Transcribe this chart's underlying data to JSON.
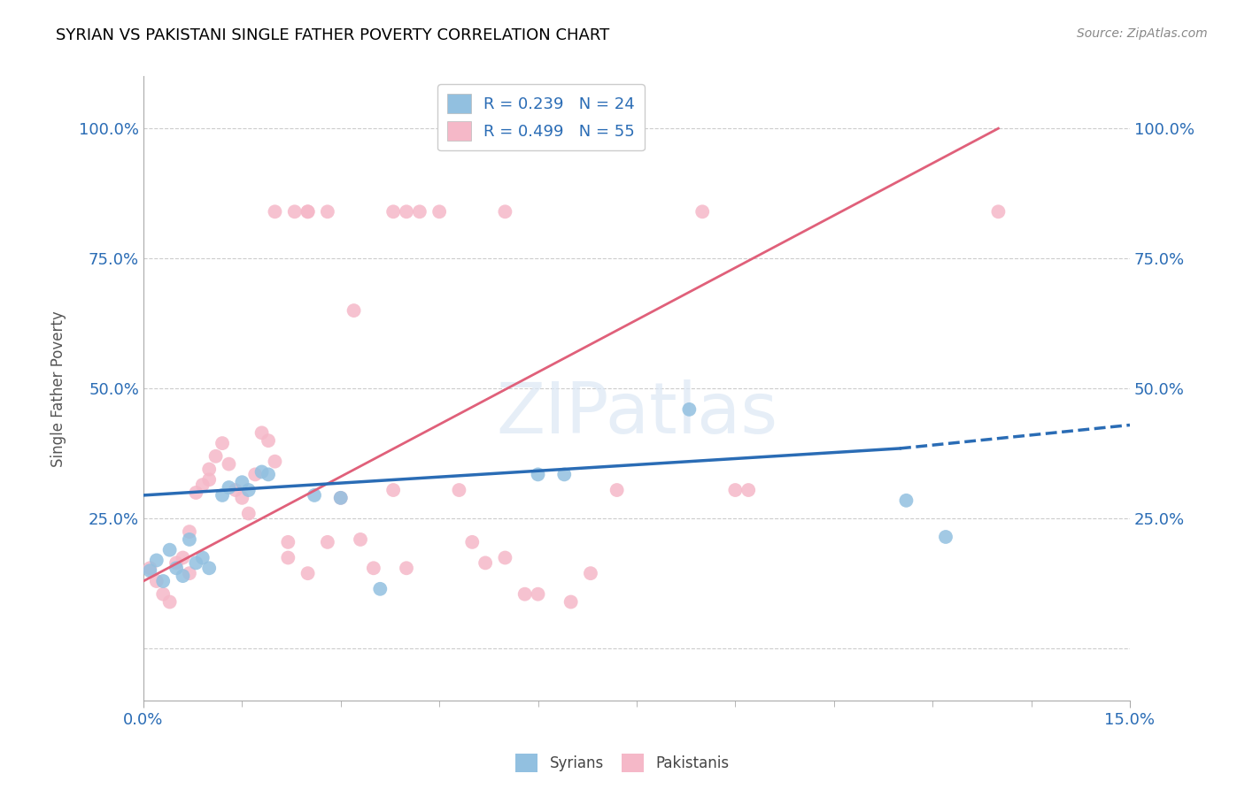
{
  "title": "SYRIAN VS PAKISTANI SINGLE FATHER POVERTY CORRELATION CHART",
  "source": "Source: ZipAtlas.com",
  "ylabel": "Single Father Poverty",
  "y_ticks": [
    0.0,
    0.25,
    0.5,
    0.75,
    1.0
  ],
  "y_tick_labels": [
    "",
    "25.0%",
    "50.0%",
    "75.0%",
    "100.0%"
  ],
  "x_range": [
    0.0,
    0.15
  ],
  "y_range": [
    -0.1,
    1.1
  ],
  "legend_r_syrian": "R = 0.239",
  "legend_n_syrian": "N = 24",
  "legend_r_pakistani": "R = 0.499",
  "legend_n_pakistani": "N = 55",
  "syrian_color": "#92c0e0",
  "pakistani_color": "#f5b8c8",
  "syrian_line_color": "#2a6cb5",
  "pakistani_line_color": "#e0607a",
  "syrian_line_x": [
    0.0,
    0.115,
    0.15
  ],
  "syrian_line_y": [
    0.295,
    0.385,
    0.43
  ],
  "pakistani_line_x": [
    0.0,
    0.13
  ],
  "pakistani_line_y": [
    0.13,
    1.0
  ],
  "syrian_points": [
    [
      0.001,
      0.15
    ],
    [
      0.002,
      0.17
    ],
    [
      0.003,
      0.13
    ],
    [
      0.004,
      0.19
    ],
    [
      0.005,
      0.155
    ],
    [
      0.006,
      0.14
    ],
    [
      0.007,
      0.21
    ],
    [
      0.008,
      0.165
    ],
    [
      0.009,
      0.175
    ],
    [
      0.01,
      0.155
    ],
    [
      0.012,
      0.295
    ],
    [
      0.013,
      0.31
    ],
    [
      0.015,
      0.32
    ],
    [
      0.016,
      0.305
    ],
    [
      0.018,
      0.34
    ],
    [
      0.019,
      0.335
    ],
    [
      0.026,
      0.295
    ],
    [
      0.03,
      0.29
    ],
    [
      0.036,
      0.115
    ],
    [
      0.06,
      0.335
    ],
    [
      0.064,
      0.335
    ],
    [
      0.083,
      0.46
    ],
    [
      0.116,
      0.285
    ],
    [
      0.122,
      0.215
    ]
  ],
  "pakistani_points": [
    [
      0.001,
      0.155
    ],
    [
      0.002,
      0.13
    ],
    [
      0.003,
      0.105
    ],
    [
      0.004,
      0.09
    ],
    [
      0.005,
      0.165
    ],
    [
      0.006,
      0.175
    ],
    [
      0.007,
      0.145
    ],
    [
      0.007,
      0.225
    ],
    [
      0.008,
      0.3
    ],
    [
      0.009,
      0.315
    ],
    [
      0.01,
      0.325
    ],
    [
      0.01,
      0.345
    ],
    [
      0.011,
      0.37
    ],
    [
      0.012,
      0.395
    ],
    [
      0.013,
      0.355
    ],
    [
      0.014,
      0.305
    ],
    [
      0.015,
      0.29
    ],
    [
      0.016,
      0.26
    ],
    [
      0.017,
      0.335
    ],
    [
      0.018,
      0.415
    ],
    [
      0.019,
      0.4
    ],
    [
      0.02,
      0.36
    ],
    [
      0.022,
      0.205
    ],
    [
      0.025,
      0.145
    ],
    [
      0.028,
      0.205
    ],
    [
      0.03,
      0.29
    ],
    [
      0.033,
      0.21
    ],
    [
      0.038,
      0.305
    ],
    [
      0.038,
      0.84
    ],
    [
      0.04,
      0.84
    ],
    [
      0.042,
      0.84
    ],
    [
      0.045,
      0.84
    ],
    [
      0.048,
      0.305
    ],
    [
      0.05,
      0.205
    ],
    [
      0.052,
      0.165
    ],
    [
      0.055,
      0.175
    ],
    [
      0.058,
      0.105
    ],
    [
      0.06,
      0.105
    ],
    [
      0.065,
      0.09
    ],
    [
      0.068,
      0.145
    ],
    [
      0.035,
      0.155
    ],
    [
      0.04,
      0.155
    ],
    [
      0.072,
      0.305
    ],
    [
      0.02,
      0.84
    ],
    [
      0.023,
      0.84
    ],
    [
      0.025,
      0.84
    ],
    [
      0.028,
      0.84
    ],
    [
      0.055,
      0.84
    ],
    [
      0.032,
      0.65
    ],
    [
      0.085,
      0.84
    ],
    [
      0.09,
      0.305
    ],
    [
      0.092,
      0.305
    ],
    [
      0.13,
      0.84
    ],
    [
      0.022,
      0.175
    ],
    [
      0.025,
      0.84
    ]
  ]
}
